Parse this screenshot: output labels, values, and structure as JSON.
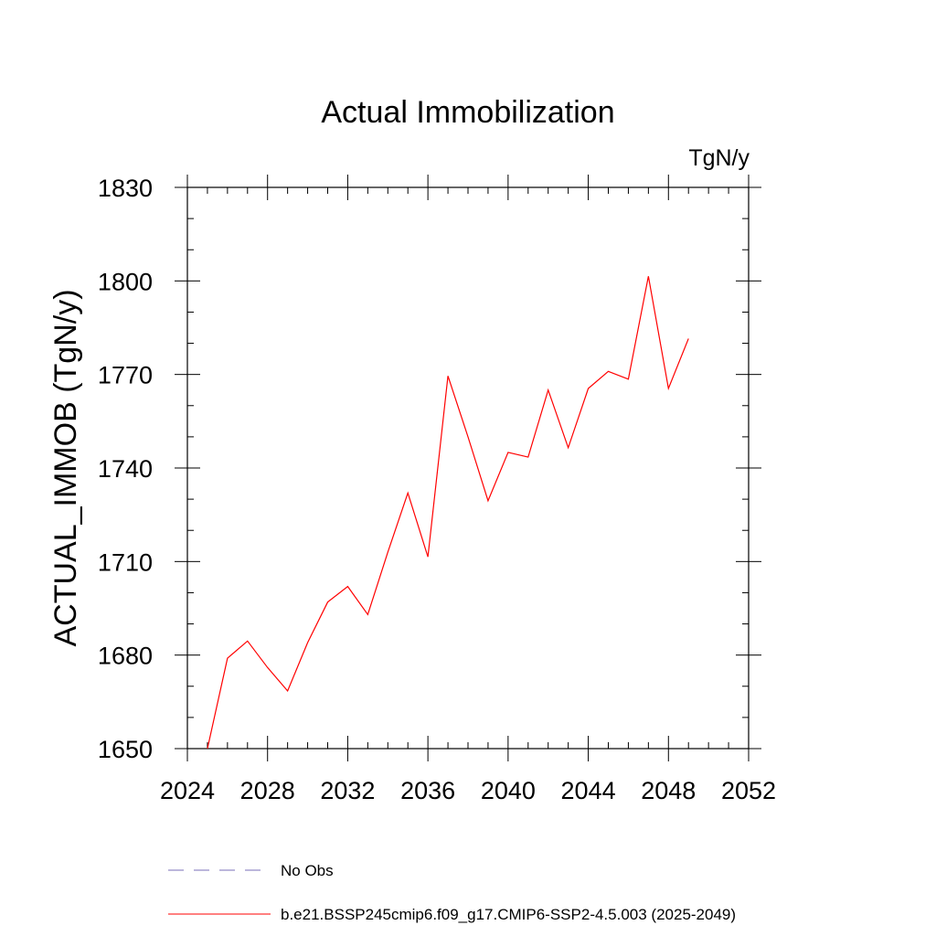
{
  "chart_data": {
    "type": "line",
    "title": "Actual Immobilization",
    "units_label": "TgN/y",
    "ylabel": "ACTUAL_IMMOB  (TgN/y)",
    "xlabel": "",
    "xlim": [
      2024,
      2052
    ],
    "ylim": [
      1650,
      1830
    ],
    "x_ticks": [
      2024,
      2028,
      2032,
      2036,
      2040,
      2044,
      2048,
      2052
    ],
    "y_ticks": [
      1650,
      1680,
      1710,
      1740,
      1770,
      1800,
      1830
    ],
    "x_minor_step": 1,
    "y_minor_step": 10,
    "grid": false,
    "series": [
      {
        "name": "b.e21.BSSP245cmip6.f09_g17.CMIP6-SSP2-4.5.003 (2025-2049)",
        "color": "#ff0000",
        "dash": "solid",
        "x": [
          2025,
          2026,
          2027,
          2028,
          2029,
          2030,
          2031,
          2032,
          2033,
          2034,
          2035,
          2036,
          2037,
          2038,
          2039,
          2040,
          2041,
          2042,
          2043,
          2044,
          2045,
          2046,
          2047,
          2048,
          2049
        ],
        "values": [
          1650.0,
          1679.0,
          1684.5,
          1676.0,
          1668.5,
          1684.0,
          1697.0,
          1702.0,
          1693.0,
          1713.0,
          1732.0,
          1711.5,
          1769.5,
          1750.0,
          1729.5,
          1745.0,
          1743.5,
          1765.0,
          1746.5,
          1765.5,
          1771.0,
          1768.5,
          1801.5,
          1765.5,
          1781.5
        ]
      }
    ],
    "legend": {
      "placement": "bottom",
      "entries": [
        {
          "label": "No Obs",
          "color": "#7a6fb8",
          "dash": "dashed"
        },
        {
          "label": "b.e21.BSSP245cmip6.f09_g17.CMIP6-SSP2-4.5.003 (2025-2049)",
          "color": "#ff0000",
          "dash": "solid"
        }
      ]
    }
  }
}
